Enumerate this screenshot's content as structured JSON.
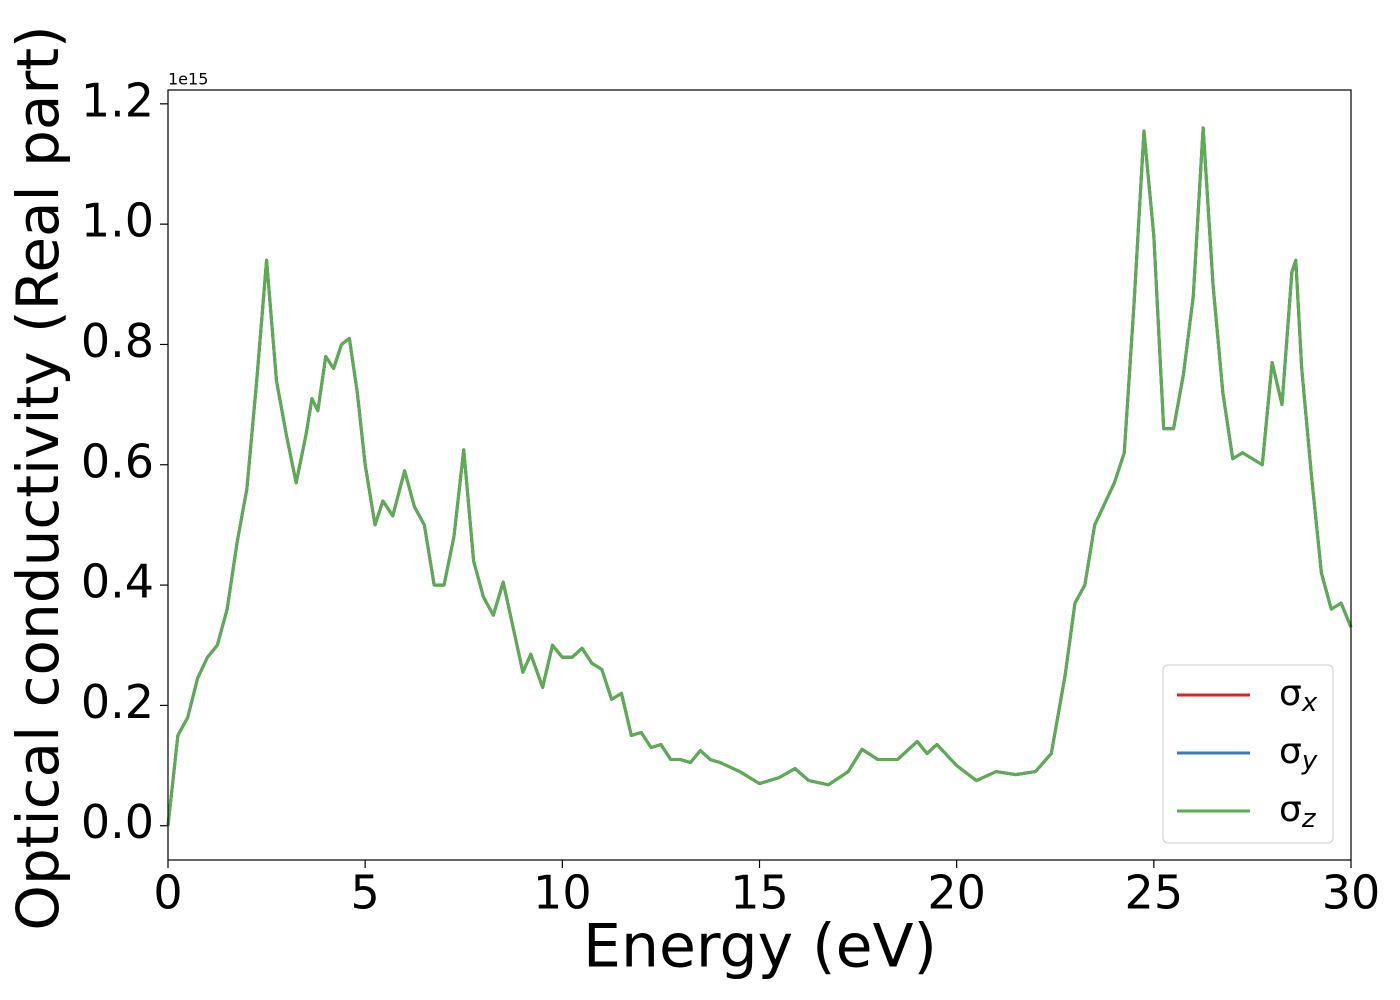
{
  "chart_data": {
    "type": "line",
    "xlabel": "Energy (eV)",
    "ylabel": "Optical conductivity (Real part)",
    "offset_label": "1e15",
    "x": [
      0,
      0.25,
      0.5,
      0.75,
      1.0,
      1.25,
      1.5,
      1.75,
      2.0,
      2.25,
      2.5,
      2.75,
      3.0,
      3.25,
      3.5,
      3.65,
      3.8,
      4.0,
      4.2,
      4.4,
      4.6,
      4.8,
      5.0,
      5.25,
      5.45,
      5.7,
      6.0,
      6.25,
      6.5,
      6.75,
      7.0,
      7.25,
      7.5,
      7.75,
      8.0,
      8.25,
      8.5,
      8.75,
      9.0,
      9.2,
      9.5,
      9.75,
      10.0,
      10.25,
      10.5,
      10.75,
      11.0,
      11.25,
      11.5,
      11.75,
      12.0,
      12.25,
      12.5,
      12.75,
      13.0,
      13.25,
      13.5,
      13.75,
      14.0,
      14.5,
      15.0,
      15.5,
      15.9,
      16.25,
      16.75,
      17.25,
      17.6,
      18.0,
      18.5,
      19.0,
      19.25,
      19.5,
      20.0,
      20.5,
      21.0,
      21.5,
      22.0,
      22.4,
      22.75,
      23.0,
      23.25,
      23.5,
      24.0,
      24.25,
      24.5,
      24.75,
      25.0,
      25.25,
      25.5,
      25.75,
      26.0,
      26.25,
      26.5,
      26.75,
      27.0,
      27.25,
      27.5,
      27.75,
      28.0,
      28.25,
      28.5,
      28.6,
      28.75,
      29.0,
      29.25,
      29.5,
      29.75,
      30.0
    ],
    "series": [
      {
        "name": "σx",
        "color": "#d62728",
        "values": [
          0.0,
          0.15,
          0.18,
          0.245,
          0.28,
          0.3,
          0.36,
          0.47,
          0.56,
          0.74,
          0.94,
          0.74,
          0.65,
          0.57,
          0.65,
          0.71,
          0.69,
          0.78,
          0.76,
          0.8,
          0.81,
          0.72,
          0.6,
          0.5,
          0.54,
          0.515,
          0.59,
          0.53,
          0.5,
          0.4,
          0.4,
          0.48,
          0.625,
          0.44,
          0.38,
          0.35,
          0.405,
          0.33,
          0.255,
          0.285,
          0.23,
          0.3,
          0.28,
          0.28,
          0.295,
          0.27,
          0.26,
          0.21,
          0.22,
          0.15,
          0.155,
          0.13,
          0.135,
          0.11,
          0.11,
          0.105,
          0.125,
          0.11,
          0.105,
          0.09,
          0.07,
          0.08,
          0.095,
          0.075,
          0.068,
          0.09,
          0.127,
          0.11,
          0.11,
          0.14,
          0.12,
          0.135,
          0.1,
          0.075,
          0.09,
          0.085,
          0.09,
          0.12,
          0.25,
          0.37,
          0.4,
          0.5,
          0.57,
          0.62,
          0.87,
          1.155,
          0.98,
          0.66,
          0.66,
          0.75,
          0.88,
          1.16,
          0.9,
          0.72,
          0.61,
          0.62,
          0.61,
          0.6,
          0.77,
          0.7,
          0.92,
          0.94,
          0.76,
          0.58,
          0.42,
          0.36,
          0.37,
          0.33
        ]
      },
      {
        "name": "σy",
        "color": "#3a7bbf",
        "values": [
          0.0,
          0.15,
          0.18,
          0.245,
          0.28,
          0.3,
          0.36,
          0.47,
          0.56,
          0.74,
          0.94,
          0.74,
          0.65,
          0.57,
          0.65,
          0.71,
          0.69,
          0.78,
          0.76,
          0.8,
          0.81,
          0.72,
          0.6,
          0.5,
          0.54,
          0.515,
          0.59,
          0.53,
          0.5,
          0.4,
          0.4,
          0.48,
          0.625,
          0.44,
          0.38,
          0.35,
          0.405,
          0.33,
          0.255,
          0.285,
          0.23,
          0.3,
          0.28,
          0.28,
          0.295,
          0.27,
          0.26,
          0.21,
          0.22,
          0.15,
          0.155,
          0.13,
          0.135,
          0.11,
          0.11,
          0.105,
          0.125,
          0.11,
          0.105,
          0.09,
          0.07,
          0.08,
          0.095,
          0.075,
          0.068,
          0.09,
          0.127,
          0.11,
          0.11,
          0.14,
          0.12,
          0.135,
          0.1,
          0.075,
          0.09,
          0.085,
          0.09,
          0.12,
          0.25,
          0.37,
          0.4,
          0.5,
          0.57,
          0.62,
          0.87,
          1.155,
          0.98,
          0.66,
          0.66,
          0.75,
          0.88,
          1.16,
          0.9,
          0.72,
          0.61,
          0.62,
          0.61,
          0.6,
          0.77,
          0.7,
          0.92,
          0.94,
          0.76,
          0.58,
          0.42,
          0.36,
          0.37,
          0.33
        ]
      },
      {
        "name": "σz",
        "color": "#5aad50",
        "values": [
          0.0,
          0.15,
          0.18,
          0.245,
          0.28,
          0.3,
          0.36,
          0.47,
          0.56,
          0.74,
          0.94,
          0.74,
          0.65,
          0.57,
          0.65,
          0.71,
          0.69,
          0.78,
          0.76,
          0.8,
          0.81,
          0.72,
          0.6,
          0.5,
          0.54,
          0.515,
          0.59,
          0.53,
          0.5,
          0.4,
          0.4,
          0.48,
          0.625,
          0.44,
          0.38,
          0.35,
          0.405,
          0.33,
          0.255,
          0.285,
          0.23,
          0.3,
          0.28,
          0.28,
          0.295,
          0.27,
          0.26,
          0.21,
          0.22,
          0.15,
          0.155,
          0.13,
          0.135,
          0.11,
          0.11,
          0.105,
          0.125,
          0.11,
          0.105,
          0.09,
          0.07,
          0.08,
          0.095,
          0.075,
          0.068,
          0.09,
          0.127,
          0.11,
          0.11,
          0.14,
          0.12,
          0.135,
          0.1,
          0.075,
          0.09,
          0.085,
          0.09,
          0.12,
          0.25,
          0.37,
          0.4,
          0.5,
          0.57,
          0.62,
          0.87,
          1.155,
          0.98,
          0.66,
          0.66,
          0.75,
          0.88,
          1.16,
          0.9,
          0.72,
          0.61,
          0.62,
          0.61,
          0.6,
          0.77,
          0.7,
          0.92,
          0.94,
          0.76,
          0.58,
          0.42,
          0.36,
          0.37,
          0.33
        ]
      }
    ],
    "xlim": [
      0,
      30
    ],
    "xticks": [
      0,
      5,
      10,
      15,
      20,
      25,
      30
    ],
    "ylim": [
      -0.057,
      1.223
    ],
    "yticks": [
      {
        "value": 0,
        "label": "0.0"
      },
      0.2,
      0.4,
      0.6,
      0.8,
      {
        "value": 1,
        "label": "1.0"
      },
      1.2
    ],
    "legend": "lower right"
  }
}
